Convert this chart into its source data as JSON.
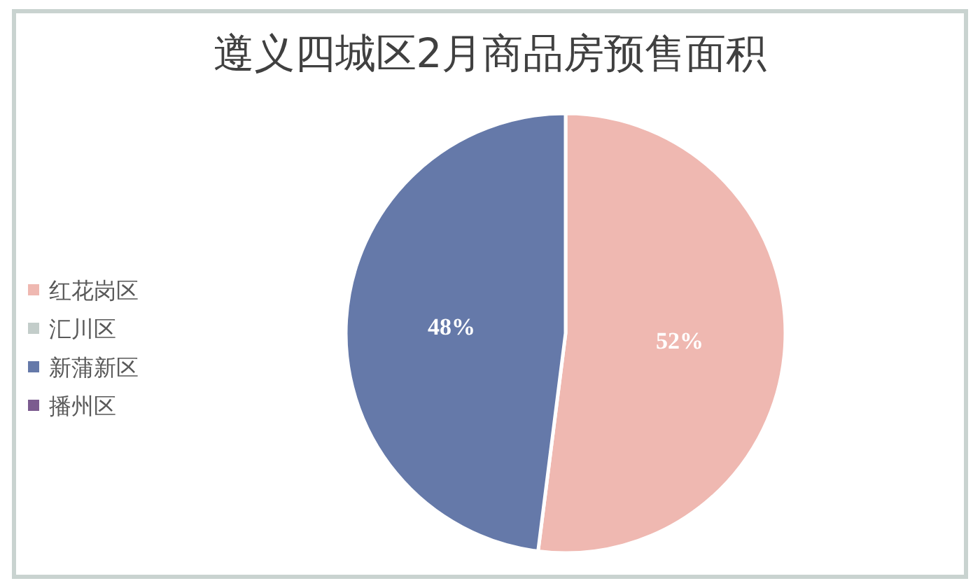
{
  "chart_data": {
    "type": "pie",
    "title": "遵义四城区2月商品房预售面积",
    "categories": [
      "红花岗区",
      "汇川区",
      "新蒲新区",
      "播州区"
    ],
    "values": [
      52,
      0,
      48,
      0
    ],
    "colors": [
      "#efb8b1",
      "#c3cdca",
      "#6579a9",
      "#7b5b8f"
    ],
    "value_labels": [
      "52%",
      null,
      "48%",
      null
    ],
    "legend": "left"
  }
}
